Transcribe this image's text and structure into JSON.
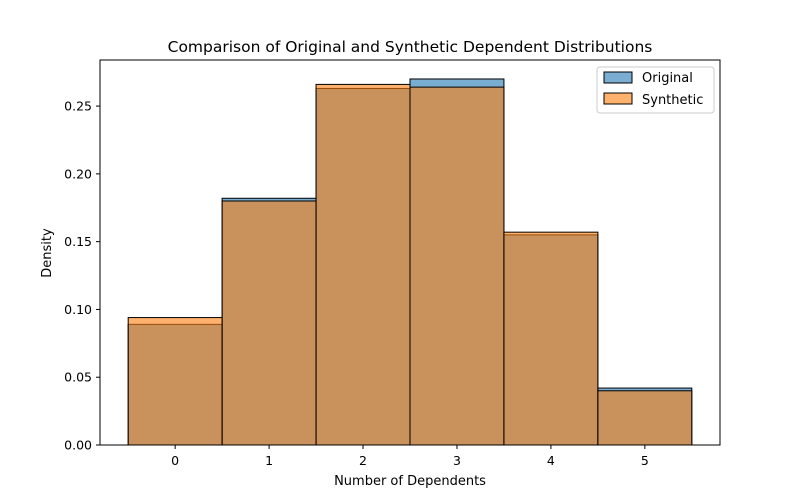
{
  "chart_data": {
    "type": "bar",
    "title": "Comparison of Original and Synthetic Dependent Distributions",
    "xlabel": "Number of Dependents",
    "ylabel": "Density",
    "categories": [
      "0",
      "1",
      "2",
      "3",
      "4",
      "5"
    ],
    "x": [
      0,
      1,
      2,
      3,
      4,
      5
    ],
    "xlim": [
      -0.8,
      5.8
    ],
    "ylim": [
      0,
      0.284
    ],
    "yticks": [
      "0.00",
      "0.05",
      "0.10",
      "0.15",
      "0.20",
      "0.25"
    ],
    "grid": false,
    "legend_position": "top-right",
    "series": [
      {
        "name": "Original",
        "values": [
          0.089,
          0.182,
          0.263,
          0.27,
          0.155,
          0.042
        ],
        "color": "#1f77b4"
      },
      {
        "name": "Synthetic",
        "values": [
          0.094,
          0.18,
          0.266,
          0.264,
          0.157,
          0.04
        ],
        "color": "#ff7f0e"
      }
    ]
  }
}
